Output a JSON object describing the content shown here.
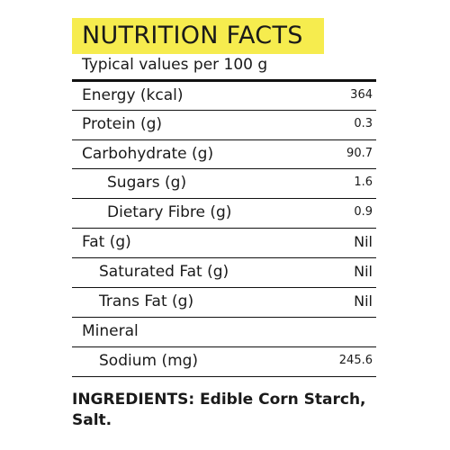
{
  "panel": {
    "title": "NUTRITION FACTS",
    "subtitle": "Typical values per 100 g"
  },
  "rows": [
    {
      "label": "Energy (kcal)",
      "value": "364"
    },
    {
      "label": "Protein (g)",
      "value": "0.3"
    },
    {
      "label": "Carbohydrate (g)",
      "value": "90.7"
    },
    {
      "label": "Sugars (g)",
      "value": "1.6"
    },
    {
      "label": "Dietary Fibre (g)",
      "value": "0.9"
    },
    {
      "label": "Fat (g)",
      "value": "Nil"
    },
    {
      "label": "Saturated Fat (g)",
      "value": "Nil"
    },
    {
      "label": "Trans Fat (g)",
      "value": "Nil"
    },
    {
      "label": "Mineral",
      "value": ""
    },
    {
      "label": "Sodium (mg)",
      "value": "245.6"
    }
  ],
  "ingredients": {
    "text": "INGREDIENTS: Edible Corn Starch, Salt."
  },
  "colors": {
    "title_highlight": "#f6ec4e",
    "text": "#1a1a1a",
    "rules": "#111111"
  }
}
